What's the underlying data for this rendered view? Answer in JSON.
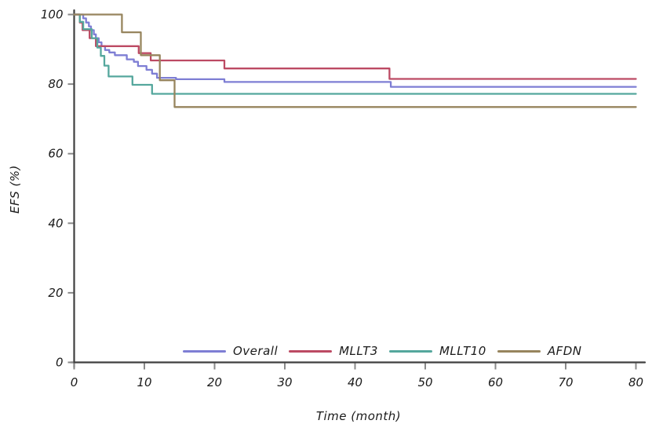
{
  "chart_data": {
    "type": "line",
    "subtype": "kaplan-meier-step",
    "title": "",
    "xlabel": "Time (month)",
    "ylabel": "EFS (%)",
    "xlim": [
      0,
      80
    ],
    "ylim": [
      0,
      100
    ],
    "xticks": [
      0,
      10,
      20,
      30,
      40,
      50,
      60,
      70,
      80
    ],
    "yticks": [
      0,
      20,
      40,
      60,
      80,
      100
    ],
    "grid": "off",
    "legend_position": "lower center inside",
    "axis_color": "#3f3f3f",
    "tick_color": "#8a8a8a",
    "text_color": "#1a1a1a",
    "series": [
      {
        "name": "Overall",
        "color": "#7e7ed4",
        "points": [
          [
            0,
            100
          ],
          [
            1.3,
            98.9
          ],
          [
            1.7,
            97.7
          ],
          [
            2.1,
            96.6
          ],
          [
            2.4,
            95.5
          ],
          [
            2.8,
            94.3
          ],
          [
            3.1,
            93.2
          ],
          [
            3.5,
            92.0
          ],
          [
            3.9,
            90.9
          ],
          [
            4.4,
            89.8
          ],
          [
            5.0,
            89.1
          ],
          [
            5.8,
            88.3
          ],
          [
            7.5,
            87.1
          ],
          [
            8.5,
            86.4
          ],
          [
            9.1,
            85.2
          ],
          [
            10.3,
            84.1
          ],
          [
            11.1,
            83.0
          ],
          [
            11.8,
            81.8
          ],
          [
            14.5,
            81.4
          ],
          [
            21.4,
            80.6
          ],
          [
            45.1,
            79.2
          ],
          [
            80,
            79.2
          ]
        ]
      },
      {
        "name": "MLLT3",
        "color": "#bc4a63",
        "points": [
          [
            0,
            100
          ],
          [
            0.8,
            97.7
          ],
          [
            1.2,
            95.5
          ],
          [
            2.2,
            93.2
          ],
          [
            3.1,
            90.9
          ],
          [
            9.2,
            88.9
          ],
          [
            10.9,
            86.8
          ],
          [
            21.4,
            84.5
          ],
          [
            44.9,
            81.5
          ],
          [
            80,
            81.5
          ]
        ]
      },
      {
        "name": "MLLT10",
        "color": "#55a79d",
        "points": [
          [
            0,
            100
          ],
          [
            0.8,
            97.9
          ],
          [
            1.3,
            95.8
          ],
          [
            2.5,
            93.2
          ],
          [
            3.3,
            90.5
          ],
          [
            3.8,
            88.1
          ],
          [
            4.3,
            85.3
          ],
          [
            4.9,
            82.2
          ],
          [
            8.3,
            79.8
          ],
          [
            11.1,
            77.2
          ],
          [
            80,
            77.2
          ]
        ]
      },
      {
        "name": "AFDN",
        "color": "#97855e",
        "points": [
          [
            0,
            100
          ],
          [
            6.8,
            94.9
          ],
          [
            9.5,
            88.3
          ],
          [
            12.2,
            81.1
          ],
          [
            14.3,
            73.4
          ],
          [
            80,
            73.4
          ]
        ]
      }
    ]
  }
}
